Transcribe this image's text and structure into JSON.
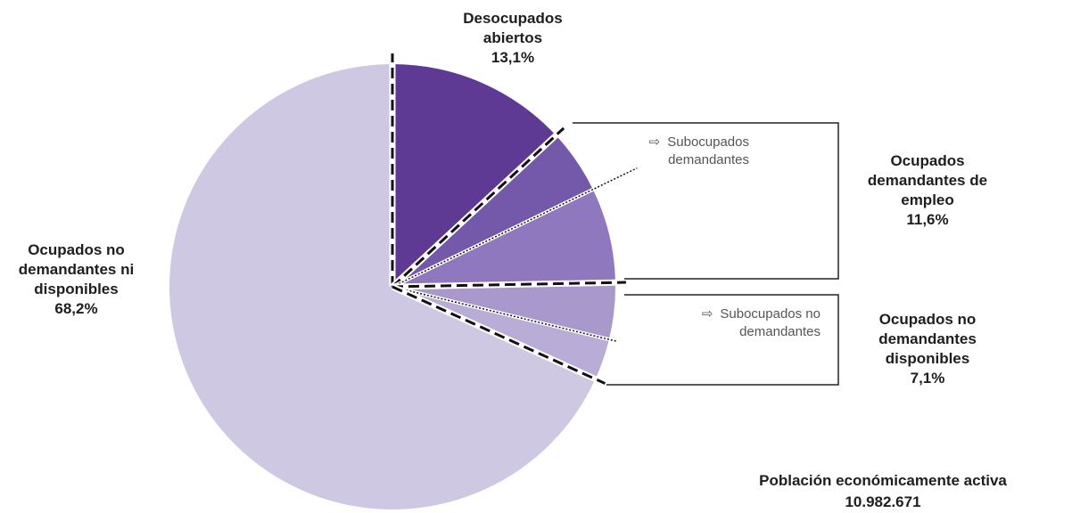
{
  "chart_data": {
    "type": "pie",
    "categories": [
      "Desocupados abiertos",
      "Ocupados demandantes de empleo",
      "Ocupados no demandantes disponibles",
      "Ocupados no demandantes ni disponibles"
    ],
    "values": [
      13.1,
      11.6,
      7.1,
      68.2
    ],
    "value_labels": [
      "13,1%",
      "11,6%",
      "7,1%",
      "68,2%"
    ],
    "colors": [
      "#5e3a94",
      "#8f78be",
      "#b9acd7",
      "#cfc8e3"
    ],
    "subcategories": [
      {
        "name": "Subocupados demandantes",
        "value": 4.7,
        "color": "#7459aa"
      },
      {
        "name": "Subocupados no demandantes",
        "value": 4.1,
        "color": "#a898cc"
      }
    ],
    "note": [
      "Población económicamente activa",
      "10.982.671"
    ]
  }
}
